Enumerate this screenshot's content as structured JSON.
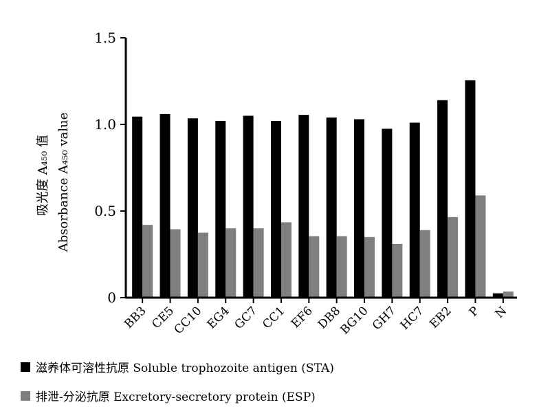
{
  "chart_data": {
    "type": "bar",
    "ylabel_cn": "吸光度 A₄₅₀ 值",
    "ylabel_en": "Absorbance A₄₅₀ value",
    "ylim": [
      0,
      1.5
    ],
    "yticks": [
      "0",
      "0.5",
      "1.0",
      "1.5"
    ],
    "categories": [
      "BB3",
      "CE5",
      "CC10",
      "EG4",
      "GC7",
      "CC1",
      "EF6",
      "DB8",
      "BG10",
      "GH7",
      "HC7",
      "EB2",
      "P",
      "N"
    ],
    "series": [
      {
        "name": "滋养体可溶性抗原 Soluble trophozoite antigen (STA)",
        "color": "#000000",
        "values": [
          1.045,
          1.06,
          1.035,
          1.02,
          1.05,
          1.02,
          1.055,
          1.04,
          1.03,
          0.975,
          1.01,
          1.14,
          1.255,
          0.025
        ]
      },
      {
        "name": "排泄-分泌抗原 Excretory-secretory protein (ESP)",
        "color": "#7f7f7f",
        "values": [
          0.42,
          0.395,
          0.375,
          0.4,
          0.4,
          0.435,
          0.355,
          0.355,
          0.35,
          0.31,
          0.39,
          0.465,
          0.59,
          0.035
        ]
      }
    ]
  },
  "legend": [
    {
      "label": "滋养体可溶性抗原 Soluble trophozoite antigen (STA)",
      "color": "#000000"
    },
    {
      "label": "排泄-分泌抗原 Excretory-secretory protein (ESP)",
      "color": "#7f7f7f"
    }
  ]
}
